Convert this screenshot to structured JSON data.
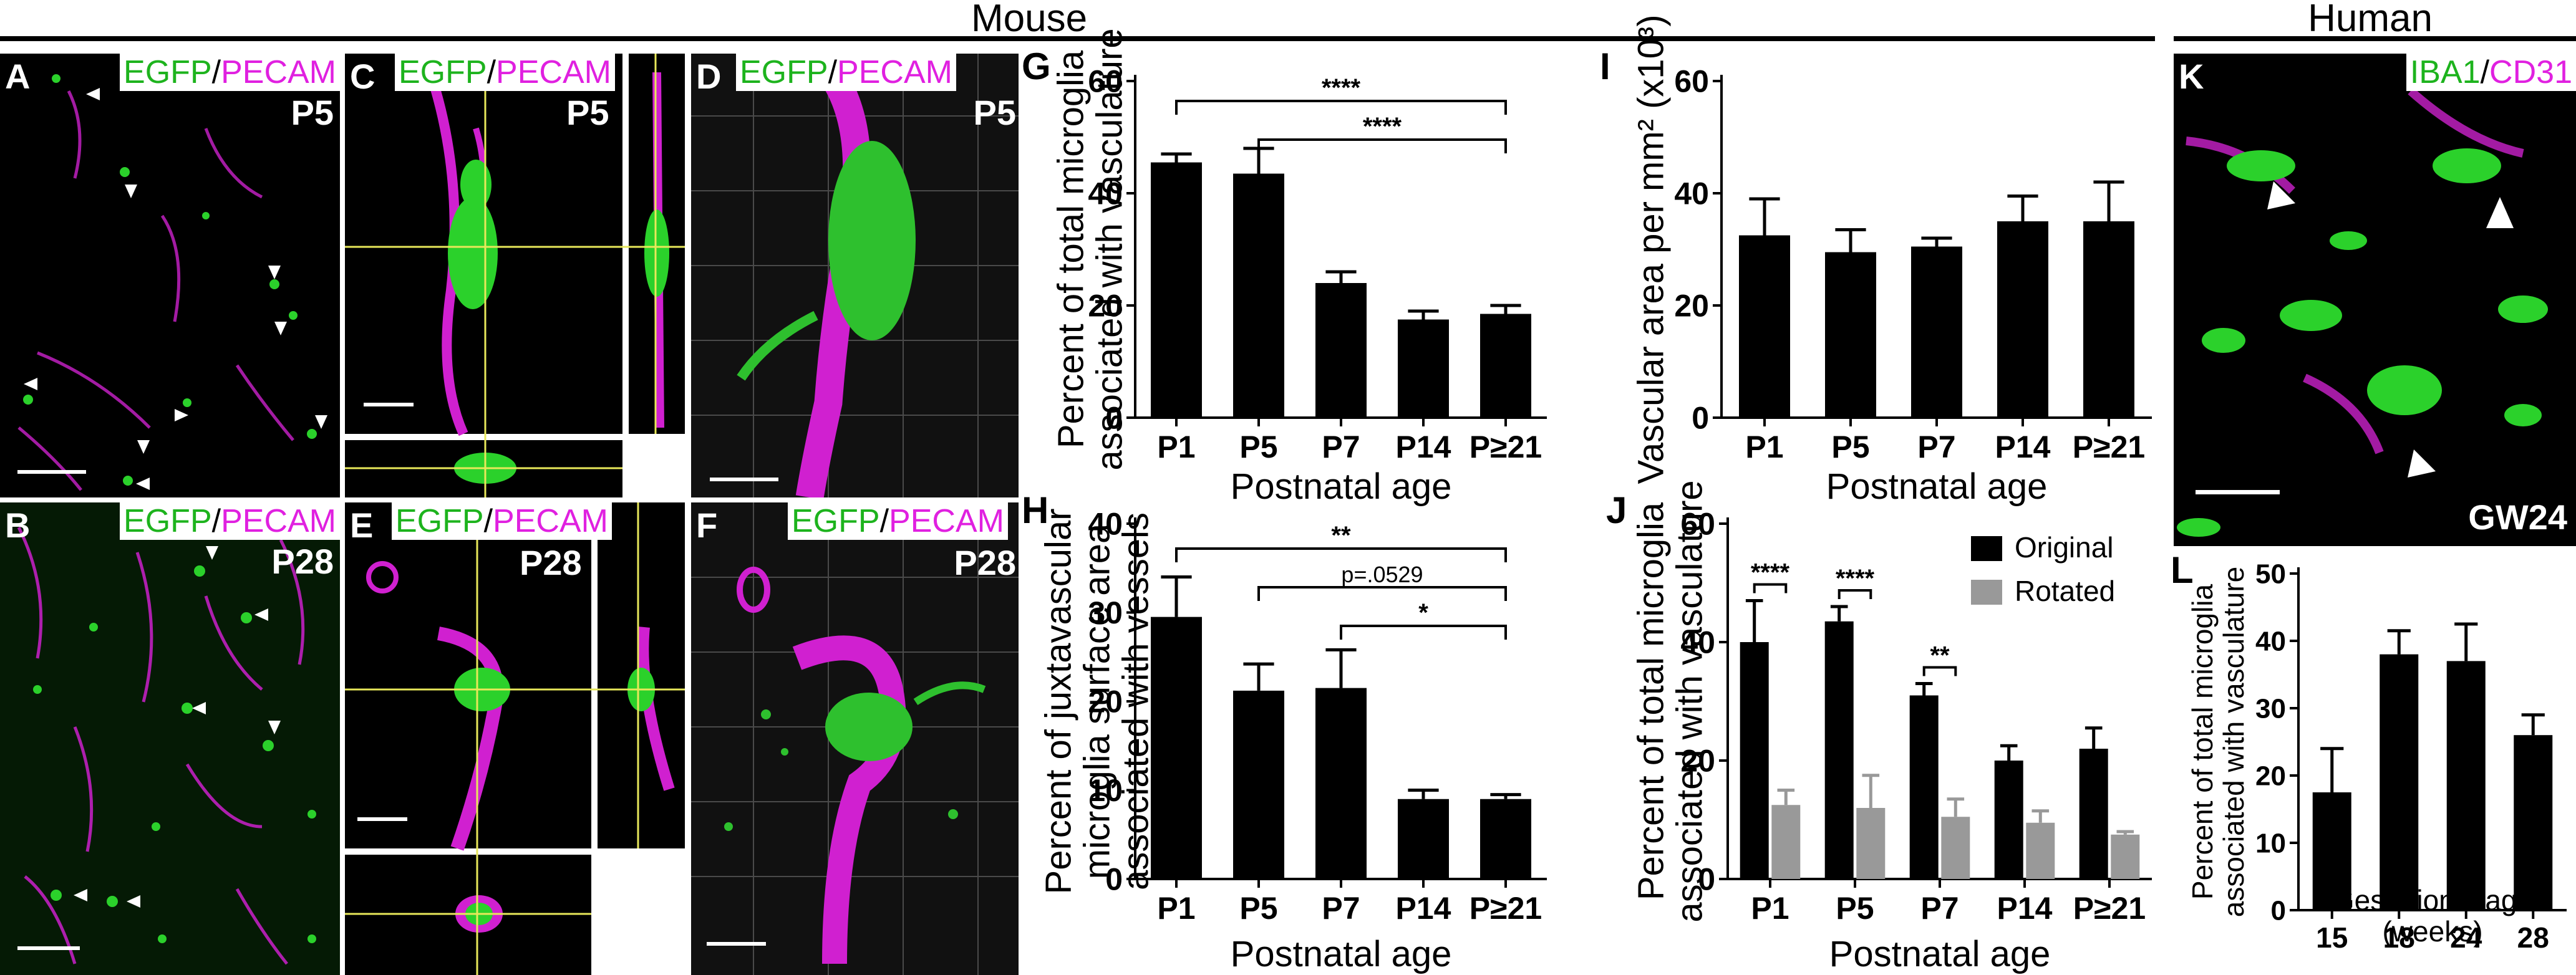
{
  "headers": {
    "mouse": "Mouse",
    "human": "Human"
  },
  "panels": {
    "A": {
      "letter": "A",
      "stain1": "EGFP",
      "sep": "/",
      "stain2": "PECAM",
      "age": "P5"
    },
    "B": {
      "letter": "B",
      "stain1": "EGFP",
      "sep": "/",
      "stain2": "PECAM",
      "age": "P28"
    },
    "C": {
      "letter": "C",
      "stain1": "EGFP",
      "sep": "/",
      "stain2": "PECAM",
      "age": "P5"
    },
    "D": {
      "letter": "D",
      "stain1": "EGFP",
      "sep": "/",
      "stain2": "PECAM",
      "age": "P5"
    },
    "E": {
      "letter": "E",
      "stain1": "EGFP",
      "sep": "/",
      "stain2": "PECAM",
      "age": "P28"
    },
    "F": {
      "letter": "F",
      "stain1": "EGFP",
      "sep": "/",
      "stain2": "PECAM",
      "age": "P28"
    },
    "K": {
      "letter": "K",
      "stain1": "IBA1",
      "sep": "/",
      "stain2": "CD31",
      "age": "GW24"
    }
  },
  "chart_data": [
    {
      "id": "G",
      "type": "bar",
      "categories": [
        "P1",
        "P5",
        "P7",
        "P14",
        "P≥21"
      ],
      "values": [
        45.5,
        43.5,
        24,
        17.5,
        18.5
      ],
      "errors": [
        1.5,
        4.5,
        2,
        1.5,
        1.5
      ],
      "ylabel": [
        "Percent of total microglia",
        "associated with vasculature"
      ],
      "xlabel": "Postnatal age",
      "ylim": [
        0,
        60
      ],
      "yticks": [
        0,
        20,
        40,
        60
      ],
      "significance": [
        {
          "from": 0,
          "to": 4,
          "label": "****"
        },
        {
          "from": 1,
          "to": 4,
          "label": "****"
        }
      ]
    },
    {
      "id": "H",
      "type": "bar",
      "categories": [
        "P1",
        "P5",
        "P7",
        "P14",
        "P≥21"
      ],
      "values": [
        29.5,
        21.2,
        21.5,
        9,
        9
      ],
      "errors": [
        4.5,
        3,
        4.3,
        1,
        0.5
      ],
      "ylabel": [
        "Percent of juxtavascular",
        "microglia surface area",
        "associated with vessels"
      ],
      "xlabel": "Postnatal age",
      "ylim": [
        0,
        40
      ],
      "yticks": [
        0,
        10,
        20,
        30,
        40
      ],
      "significance": [
        {
          "from": 0,
          "to": 4,
          "label": "**"
        },
        {
          "from": 1,
          "to": 4,
          "label": "p=.0529"
        },
        {
          "from": 2,
          "to": 4,
          "label": "*"
        }
      ]
    },
    {
      "id": "I",
      "type": "bar",
      "categories": [
        "P1",
        "P5",
        "P7",
        "P14",
        "P≥21"
      ],
      "values": [
        32.5,
        29.5,
        30.5,
        35,
        35
      ],
      "errors": [
        6.5,
        4,
        1.5,
        4.5,
        7
      ],
      "ylabel": [
        "Vascular area per mm² (x10³)"
      ],
      "xlabel": "Postnatal age",
      "ylim": [
        0,
        60
      ],
      "yticks": [
        0,
        20,
        40,
        60
      ],
      "significance": []
    },
    {
      "id": "J",
      "type": "bar",
      "categories": [
        "P1",
        "P5",
        "P7",
        "P14",
        "P≥21"
      ],
      "series": [
        {
          "name": "Original",
          "values": [
            40,
            43.5,
            31,
            20,
            22
          ],
          "errors": [
            7,
            2.5,
            2,
            2.5,
            3.5
          ],
          "color": "#000000"
        },
        {
          "name": "Rotated",
          "values": [
            12.5,
            12,
            10.5,
            9.5,
            7.5
          ],
          "errors": [
            2.5,
            5.5,
            3,
            2,
            0.5
          ],
          "color": "#999999"
        }
      ],
      "ylabel": [
        "Percent of total microglia",
        "associated with vasculature"
      ],
      "xlabel": "Postnatal age",
      "ylim": [
        0,
        60
      ],
      "yticks": [
        0,
        20,
        40,
        60
      ],
      "significance": [
        {
          "group": 0,
          "label": "****"
        },
        {
          "group": 1,
          "label": "****"
        },
        {
          "group": 2,
          "label": "**"
        }
      ]
    },
    {
      "id": "L",
      "type": "bar",
      "categories": [
        "15",
        "18",
        "24",
        "28"
      ],
      "values": [
        17.5,
        38,
        37,
        26
      ],
      "errors": [
        6.5,
        3.5,
        5.5,
        3
      ],
      "ylabel": [
        "Percent of total microglia",
        "associated with vasculature"
      ],
      "xlabel": [
        "Gestational age",
        "(weeks)"
      ],
      "ylim": [
        0,
        50
      ],
      "yticks": [
        0,
        10,
        20,
        30,
        40,
        50
      ],
      "significance": []
    }
  ],
  "colors": {
    "egfp": "#1db31d",
    "pecam": "#e020e0",
    "bar": "#000000",
    "rotated": "#999999"
  }
}
